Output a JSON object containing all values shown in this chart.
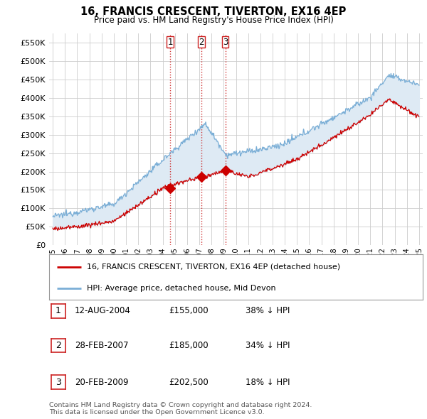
{
  "title": "16, FRANCIS CRESCENT, TIVERTON, EX16 4EP",
  "subtitle": "Price paid vs. HM Land Registry's House Price Index (HPI)",
  "ylim": [
    0,
    575000
  ],
  "yticks": [
    0,
    50000,
    100000,
    150000,
    200000,
    250000,
    300000,
    350000,
    400000,
    450000,
    500000,
    550000
  ],
  "ytick_labels": [
    "£0",
    "£50K",
    "£100K",
    "£150K",
    "£200K",
    "£250K",
    "£300K",
    "£350K",
    "£400K",
    "£450K",
    "£500K",
    "£550K"
  ],
  "hpi_color": "#7aaed6",
  "hpi_fill_color": "#deeaf4",
  "sale_color": "#cc0000",
  "vline_color": "#cc2222",
  "background_color": "#ffffff",
  "grid_color": "#cccccc",
  "sale_points": [
    {
      "date_num": 2004.62,
      "price": 155000,
      "label": "1"
    },
    {
      "date_num": 2007.17,
      "price": 185000,
      "label": "2"
    },
    {
      "date_num": 2009.13,
      "price": 202500,
      "label": "3"
    }
  ],
  "transaction_table": [
    {
      "num": "1",
      "date": "12-AUG-2004",
      "price": "£155,000",
      "hpi": "38% ↓ HPI"
    },
    {
      "num": "2",
      "date": "28-FEB-2007",
      "price": "£185,000",
      "hpi": "34% ↓ HPI"
    },
    {
      "num": "3",
      "date": "20-FEB-2009",
      "price": "£202,500",
      "hpi": "18% ↓ HPI"
    }
  ],
  "legend_line1": "16, FRANCIS CRESCENT, TIVERTON, EX16 4EP (detached house)",
  "legend_line2": "HPI: Average price, detached house, Mid Devon",
  "footer1": "Contains HM Land Registry data © Crown copyright and database right 2024.",
  "footer2": "This data is licensed under the Open Government Licence v3.0."
}
